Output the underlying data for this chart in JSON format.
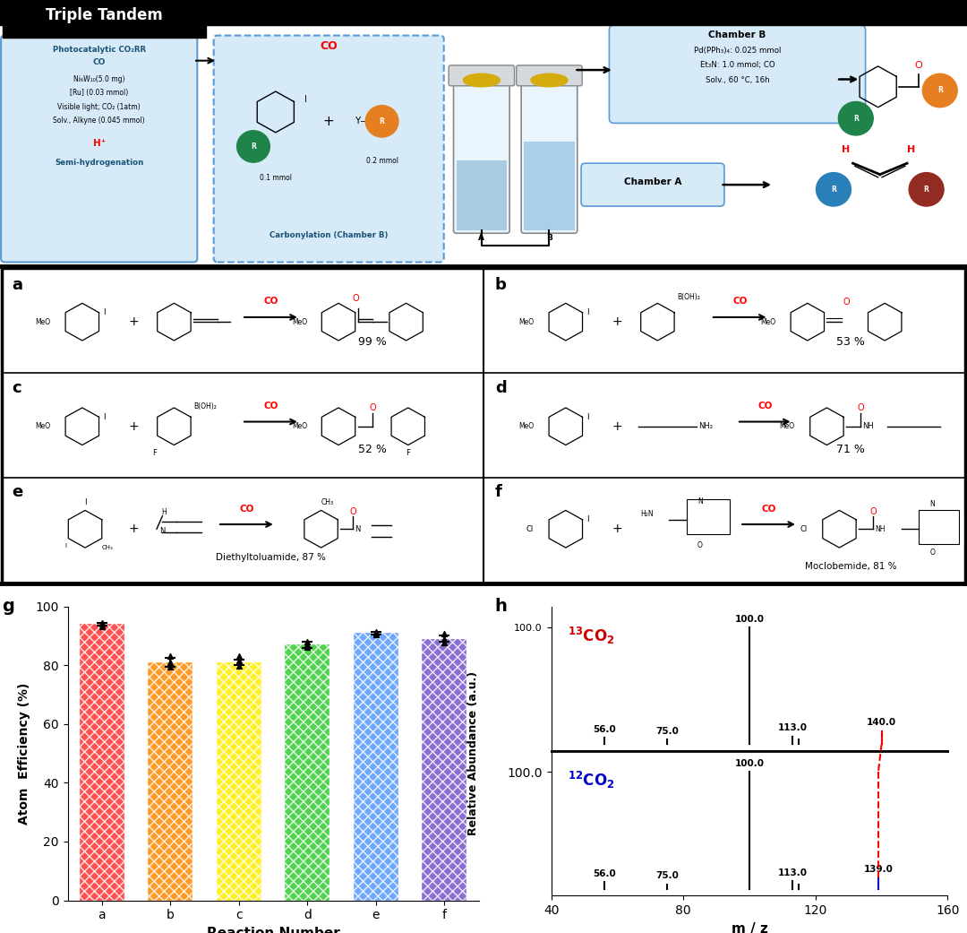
{
  "bar_chart": {
    "label": "g",
    "categories": [
      "a",
      "b",
      "c",
      "d",
      "e",
      "f"
    ],
    "values": [
      94,
      81,
      81,
      87,
      91,
      89
    ],
    "errors": [
      0.5,
      1.5,
      1.0,
      1.0,
      0.5,
      1.0
    ],
    "colors": [
      "#ff3333",
      "#ff8800",
      "#ffee00",
      "#33cc33",
      "#5599ff",
      "#7755cc"
    ],
    "ylabel": "Atom  Efficiency (%)",
    "xlabel": "Reaction Number",
    "ylim": [
      0,
      100
    ],
    "yticks": [
      0,
      20,
      40,
      60,
      80,
      100
    ],
    "scatter": {
      "a": [
        93.3,
        94.0,
        94.4
      ],
      "b": [
        79.5,
        81.0,
        83.2
      ],
      "c": [
        79.8,
        81.5,
        83.0
      ],
      "d": [
        86.3,
        87.2,
        88.1
      ],
      "e": [
        90.5,
        91.0,
        91.4
      ],
      "f": [
        87.8,
        89.0,
        90.8
      ]
    }
  },
  "mass_spec": {
    "label": "h",
    "top_label": "^{13}CO_2",
    "top_label_color": "#cc0000",
    "bottom_label": "^{12}CO_2",
    "bottom_label_color": "#0000cc",
    "top_peaks": [
      {
        "mz": 56.0,
        "intensity": 0.055,
        "label": "56.0",
        "color": "black"
      },
      {
        "mz": 75.0,
        "intensity": 0.038,
        "label": "75.0",
        "color": "black"
      },
      {
        "mz": 100.0,
        "intensity": 1.0,
        "label": "100.0",
        "color": "black"
      },
      {
        "mz": 113.0,
        "intensity": 0.065,
        "label": "113.0",
        "color": "black"
      },
      {
        "mz": 115.0,
        "intensity": 0.038,
        "label": "",
        "color": "black"
      },
      {
        "mz": 140.0,
        "intensity": 0.11,
        "label": "140.0",
        "color": "#cc0000"
      }
    ],
    "bottom_peaks": [
      {
        "mz": 56.0,
        "intensity": 0.055,
        "label": "56.0",
        "color": "black"
      },
      {
        "mz": 75.0,
        "intensity": 0.038,
        "label": "75.0",
        "color": "black"
      },
      {
        "mz": 100.0,
        "intensity": 1.0,
        "label": "100.0",
        "color": "black"
      },
      {
        "mz": 113.0,
        "intensity": 0.065,
        "label": "113.0",
        "color": "black"
      },
      {
        "mz": 115.0,
        "intensity": 0.038,
        "label": "",
        "color": "black"
      },
      {
        "mz": 139.0,
        "intensity": 0.09,
        "label": "139.0",
        "color": "#0000cc"
      }
    ],
    "xlim": [
      40,
      160
    ],
    "xlabel": "m / z",
    "ylabel": "Relative Abundance (a.u.)",
    "dashed_color": "#cc0000"
  }
}
